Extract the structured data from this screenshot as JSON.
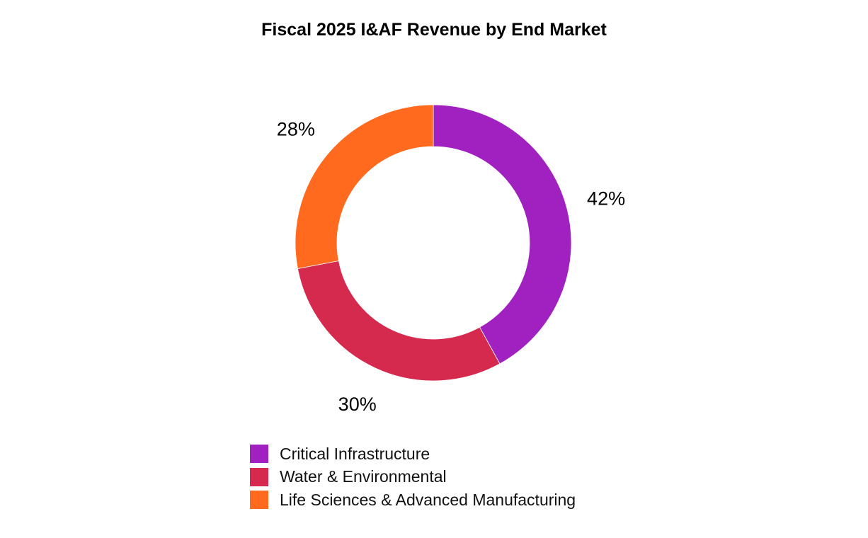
{
  "chart_data": {
    "type": "pie",
    "variant": "donut",
    "title": "Fiscal 2025 I&AF Revenue by End Market",
    "categories": [
      "Critical Infrastructure",
      "Water & Environmental",
      "Life Sciences & Advanced Manufacturing"
    ],
    "values": [
      42,
      30,
      28
    ],
    "labels": [
      "42%",
      "30%",
      "28%"
    ],
    "colors": [
      "#A020C0",
      "#D6294E",
      "#FF6A1F"
    ],
    "start_angle": "top",
    "direction": "clockwise",
    "legend_position": "bottom"
  }
}
